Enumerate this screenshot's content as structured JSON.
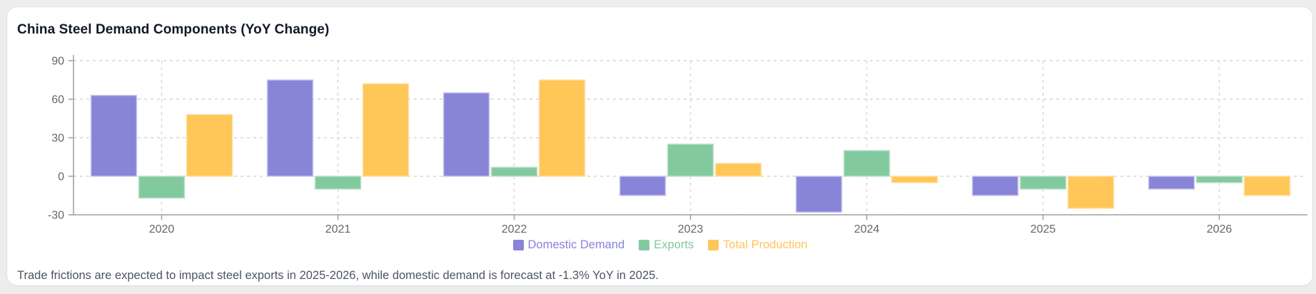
{
  "page": {
    "background_color": "#ededed",
    "card_color": "#ffffff"
  },
  "header": {
    "title": "China Steel Demand Components (YoY Change)"
  },
  "chart_data": {
    "type": "bar",
    "title": "China Steel Demand Components (YoY Change)",
    "categories": [
      "2020",
      "2021",
      "2022",
      "2023",
      "2024",
      "2025",
      "2026"
    ],
    "series": [
      {
        "name": "Domestic Demand",
        "color": "#8884d8",
        "edge_color": "#cbc9ee",
        "values": [
          63,
          75,
          65,
          -15,
          -28,
          -15,
          -10
        ]
      },
      {
        "name": "Exports",
        "color": "#82ca9d",
        "edge_color": "#c0e1ce",
        "values": [
          -17,
          -10,
          7,
          25,
          20,
          -10,
          -5
        ]
      },
      {
        "name": "Total Production",
        "color": "#ffc658",
        "edge_color": "#ffe0a6",
        "values": [
          48,
          72,
          75,
          10,
          -5,
          -25,
          -15
        ]
      }
    ],
    "xlabel": "",
    "ylabel": "",
    "ylim": [
      -30,
      90
    ],
    "y_ticks": [
      90,
      60,
      30,
      0,
      -30
    ],
    "grid": "dashed",
    "legend_position": "bottom",
    "grid_color": "#d6d6d6",
    "axis_color": "#a3a3a3",
    "tick_label_color": "#666666"
  },
  "footer": {
    "note": "Trade frictions are expected to impact steel exports in 2025-2026, while domestic demand is forecast at -1.3% YoY in 2025."
  }
}
